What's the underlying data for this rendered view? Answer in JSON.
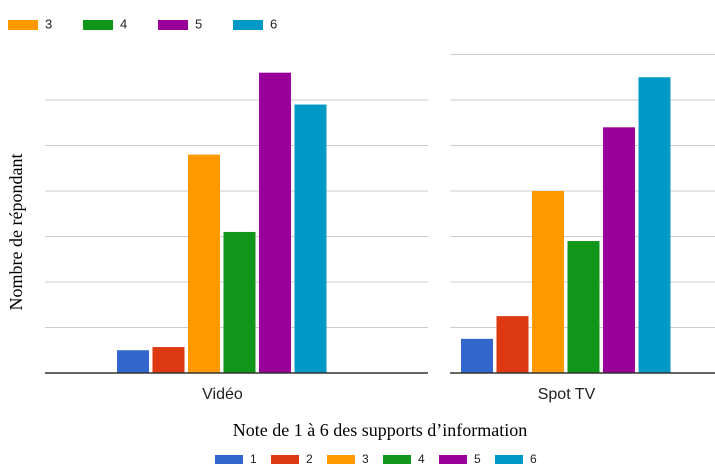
{
  "chart_data": {
    "type": "bar",
    "x_label": "Note de 1 à 6 des supports d’information",
    "y_label": "Nombre de répondant",
    "categories": [
      "Vidéo",
      "Spot TV"
    ],
    "series": [
      {
        "name": "1",
        "color": "#3366cc",
        "values": [
          0.5,
          0.75
        ]
      },
      {
        "name": "2",
        "color": "#dc3912",
        "values": [
          0.57,
          1.25
        ]
      },
      {
        "name": "3",
        "color": "#ff9900",
        "values": [
          4.8,
          4.0
        ]
      },
      {
        "name": "4",
        "color": "#109618",
        "values": [
          3.1,
          2.9
        ]
      },
      {
        "name": "5",
        "color": "#990099",
        "values": [
          6.6,
          5.4
        ]
      },
      {
        "name": "6",
        "color": "#0099c6",
        "values": [
          5.9,
          6.5
        ]
      }
    ],
    "ylim": [
      0,
      7
    ],
    "yticks": [
      0,
      1,
      2,
      3,
      4,
      5,
      6,
      7
    ],
    "grid": true
  }
}
